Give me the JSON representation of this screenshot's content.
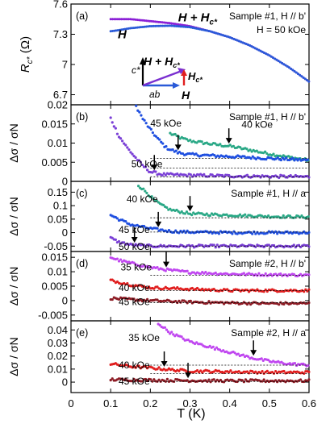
{
  "x_axis": {
    "label": "T (K)",
    "range": [
      0,
      0.6
    ],
    "ticks": [
      "0",
      "0.1",
      "0.2",
      "0.3",
      "0.4",
      "0.5",
      "0.6"
    ]
  },
  "colors": {
    "h_plus_hc": "#8a1fd6",
    "h_only": "#2a5ad8",
    "green": "#2aa886",
    "blue": "#1f4fe0",
    "purple": "#7a3fd6",
    "magenta": "#c047f0",
    "red": "#e01e1e",
    "darkred": "#8c1b24",
    "hc_arrow": "#e01e1e"
  },
  "inset": {
    "c_label": "c*",
    "ab_label": "ab",
    "h_label": "H",
    "hplus_label": "H + H",
    "hplus_sub": "c*",
    "hc_label": "H",
    "hc_sub": "c*"
  },
  "chart_data": [
    {
      "type": "line",
      "panel": "(a)",
      "title": "Sample #1, H // b'",
      "note": "H = 50 kOe",
      "ylabel": "R_c* (Ω)",
      "ylim": [
        6.6,
        7.6
      ],
      "yticks": [
        "6.7",
        "7",
        "7.3",
        "7.6"
      ],
      "series": [
        {
          "name": "H + Hc*",
          "label_main": "H + H",
          "label_sub": "c*",
          "color": "#8a1fd6",
          "points": [
            [
              0.1,
              7.45
            ],
            [
              0.15,
              7.45
            ],
            [
              0.2,
              7.43
            ],
            [
              0.25,
              7.41
            ],
            [
              0.3,
              7.38
            ],
            [
              0.35,
              7.33
            ],
            [
              0.4,
              7.27
            ],
            [
              0.45,
              7.19
            ],
            [
              0.5,
              7.09
            ],
            [
              0.55,
              6.97
            ],
            [
              0.6,
              6.83
            ]
          ]
        },
        {
          "name": "H",
          "label_main": "H",
          "label_sub": "",
          "color": "#2a5ad8",
          "points": [
            [
              0.1,
              7.33
            ],
            [
              0.12,
              7.34
            ],
            [
              0.15,
              7.36
            ],
            [
              0.2,
              7.38
            ],
            [
              0.25,
              7.385
            ],
            [
              0.3,
              7.37
            ],
            [
              0.35,
              7.33
            ],
            [
              0.4,
              7.27
            ],
            [
              0.45,
              7.19
            ],
            [
              0.5,
              7.09
            ],
            [
              0.55,
              6.97
            ],
            [
              0.6,
              6.83
            ]
          ]
        }
      ]
    },
    {
      "type": "scatter",
      "panel": "(b)",
      "title": "Sample #1, H // b'",
      "ylabel": "Δσ / σN",
      "ylim": [
        0,
        0.02
      ],
      "yticks": [
        "0",
        "0.005",
        "0.01",
        "0.015",
        "0.02"
      ],
      "series": [
        {
          "name": "40 kOe",
          "color": "#2aa886",
          "label_T": 0.43,
          "label_y": 0.0148,
          "points": [
            [
              0.25,
              0.0125
            ],
            [
              0.28,
              0.0112
            ],
            [
              0.3,
              0.0106
            ],
            [
              0.35,
              0.0098
            ],
            [
              0.4,
              0.0092
            ],
            [
              0.45,
              0.0082
            ],
            [
              0.5,
              0.0072
            ],
            [
              0.55,
              0.0063
            ],
            [
              0.6,
              0.0055
            ]
          ],
          "base_y": 0.006,
          "arrow_T": 0.398
        },
        {
          "name": "45 kOe",
          "color": "#1f4fe0",
          "label_T": 0.2,
          "label_y": 0.0152,
          "points": [
            [
              0.16,
              0.0205
            ],
            [
              0.18,
              0.0165
            ],
            [
              0.2,
              0.0135
            ],
            [
              0.22,
              0.011
            ],
            [
              0.24,
              0.0088
            ],
            [
              0.27,
              0.0075
            ],
            [
              0.3,
              0.007
            ],
            [
              0.4,
              0.0065
            ],
            [
              0.5,
              0.006
            ],
            [
              0.6,
              0.0055
            ]
          ],
          "base_y": 0.0035,
          "arrow_T": 0.27
        },
        {
          "name": "50 kOe",
          "color": "#7a3fd6",
          "label_T": 0.152,
          "label_y": 0.0045,
          "points": [
            [
              0.1,
              0.0165
            ],
            [
              0.12,
              0.012
            ],
            [
              0.14,
              0.009
            ],
            [
              0.16,
              0.0065
            ],
            [
              0.18,
              0.0042
            ],
            [
              0.2,
              0.0025
            ],
            [
              0.23,
              0.0018
            ],
            [
              0.3,
              0.0016
            ],
            [
              0.4,
              0.0014
            ],
            [
              0.5,
              0.0013
            ],
            [
              0.6,
              0.0012
            ]
          ],
          "base_y": 0.0012,
          "arrow_T": 0.21
        }
      ]
    },
    {
      "type": "scatter",
      "panel": "(c)",
      "title": "Sample #1, H // a",
      "ylabel": "Δσ / σN",
      "ylim": [
        -0.07,
        0.19
      ],
      "yticks": [
        "-0.05",
        "0",
        "0.05",
        "0.1",
        "0.15"
      ],
      "series": [
        {
          "name": "40 kOe",
          "color": "#2aa886",
          "label_T": 0.14,
          "label_y": 0.125,
          "points": [
            [
              0.17,
              0.175
            ],
            [
              0.19,
              0.15
            ],
            [
              0.21,
              0.12
            ],
            [
              0.23,
              0.1
            ],
            [
              0.25,
              0.085
            ],
            [
              0.3,
              0.07
            ],
            [
              0.4,
              0.065
            ],
            [
              0.5,
              0.06
            ],
            [
              0.6,
              0.058
            ]
          ],
          "base_y": 0.055,
          "arrow_T": 0.3
        },
        {
          "name": "45 kOe",
          "color": "#1f4fe0",
          "label_T": 0.12,
          "label_y": 0.01,
          "points": [
            [
              0.1,
              0.065
            ],
            [
              0.12,
              0.05
            ],
            [
              0.15,
              0.03
            ],
            [
              0.2,
              0.015
            ],
            [
              0.25,
              0.005
            ],
            [
              0.3,
              0.002
            ],
            [
              0.4,
              0.0
            ],
            [
              0.5,
              0.0
            ],
            [
              0.6,
              0.0
            ]
          ],
          "base_y": 0.002,
          "arrow_T": 0.22
        },
        {
          "name": "50 kOe",
          "color": "#7a3fd6",
          "label_T": 0.12,
          "label_y": -0.052,
          "points": [
            [
              0.1,
              -0.02
            ],
            [
              0.12,
              -0.035
            ],
            [
              0.15,
              -0.045
            ],
            [
              0.2,
              -0.05
            ],
            [
              0.3,
              -0.05
            ],
            [
              0.4,
              -0.05
            ],
            [
              0.5,
              -0.05
            ],
            [
              0.6,
              -0.05
            ]
          ],
          "base_y": -0.05,
          "arrow_T": 0.16
        }
      ]
    },
    {
      "type": "scatter",
      "panel": "(d)",
      "title": "Sample #2, H // b'",
      "ylabel": "Δσ / σN",
      "ylim": [
        -0.007,
        0.017
      ],
      "yticks": [
        "-0.005",
        "0",
        "0.005",
        "0.01",
        "0.015"
      ],
      "series": [
        {
          "name": "35 kOe",
          "color": "#c047f0",
          "label_T": 0.125,
          "label_y": 0.0115,
          "points": [
            [
              0.1,
              0.015
            ],
            [
              0.12,
              0.014
            ],
            [
              0.15,
              0.013
            ],
            [
              0.2,
              0.0115
            ],
            [
              0.25,
              0.0105
            ],
            [
              0.3,
              0.0098
            ],
            [
              0.4,
              0.0092
            ],
            [
              0.5,
              0.009
            ],
            [
              0.6,
              0.0088
            ]
          ],
          "base_y": 0.0088,
          "arrow_T": 0.24
        },
        {
          "name": "40 kOe",
          "color": "#e01e1e",
          "label_T": 0.12,
          "label_y": 0.0045,
          "points": [
            [
              0.1,
              0.007
            ],
            [
              0.15,
              0.0055
            ],
            [
              0.2,
              0.0045
            ],
            [
              0.3,
              0.004
            ],
            [
              0.4,
              0.0035
            ],
            [
              0.5,
              0.0035
            ],
            [
              0.6,
              0.0035
            ]
          ],
          "base_y": 0.0035,
          "arrow_T": null
        },
        {
          "name": "45 kOe",
          "color": "#8c1b24",
          "label_T": 0.12,
          "label_y": -0.0005,
          "points": [
            [
              0.1,
              0.0008
            ],
            [
              0.2,
              0.0
            ],
            [
              0.3,
              -0.0005
            ],
            [
              0.4,
              -0.0008
            ],
            [
              0.5,
              -0.001
            ],
            [
              0.6,
              -0.001
            ]
          ],
          "base_y": -0.0007,
          "arrow_T": null
        }
      ]
    },
    {
      "type": "scatter",
      "panel": "(e)",
      "title": "Sample #2, H // a",
      "ylabel": "Δσ / σN",
      "ylim": [
        -0.008,
        0.047
      ],
      "yticks": [
        "0",
        "0.01",
        "0.02",
        "0.03",
        "0.04"
      ],
      "series": [
        {
          "name": "35 kOe",
          "color": "#c047f0",
          "label_T": 0.145,
          "label_y": 0.034,
          "points": [
            [
              0.22,
              0.045
            ],
            [
              0.25,
              0.038
            ],
            [
              0.3,
              0.031
            ],
            [
              0.35,
              0.027
            ],
            [
              0.4,
              0.023
            ],
            [
              0.45,
              0.019
            ],
            [
              0.5,
              0.016
            ],
            [
              0.55,
              0.014
            ],
            [
              0.6,
              0.013
            ]
          ],
          "base_y": 0.013,
          "arrow_T": 0.46
        },
        {
          "name": "40 kOe",
          "color": "#e01e1e",
          "label_T": 0.12,
          "label_y": 0.013,
          "points": [
            [
              0.1,
              0.014
            ],
            [
              0.15,
              0.012
            ],
            [
              0.2,
              0.011
            ],
            [
              0.25,
              0.0095
            ],
            [
              0.3,
              0.0085
            ],
            [
              0.4,
              0.008
            ],
            [
              0.5,
              0.0075
            ],
            [
              0.6,
              0.0075
            ]
          ],
          "base_y": 0.0065,
          "arrow_T": 0.235
        },
        {
          "name": "45 kOe",
          "color": "#8c1b24",
          "label_T": 0.12,
          "label_y": 0.0005,
          "points": [
            [
              0.1,
              0.002
            ],
            [
              0.2,
              0.0015
            ],
            [
              0.3,
              0.0012
            ],
            [
              0.4,
              0.001
            ],
            [
              0.5,
              0.001
            ],
            [
              0.6,
              0.001
            ]
          ],
          "base_y": 0.0005,
          "arrow_T": 0.295
        }
      ]
    }
  ]
}
